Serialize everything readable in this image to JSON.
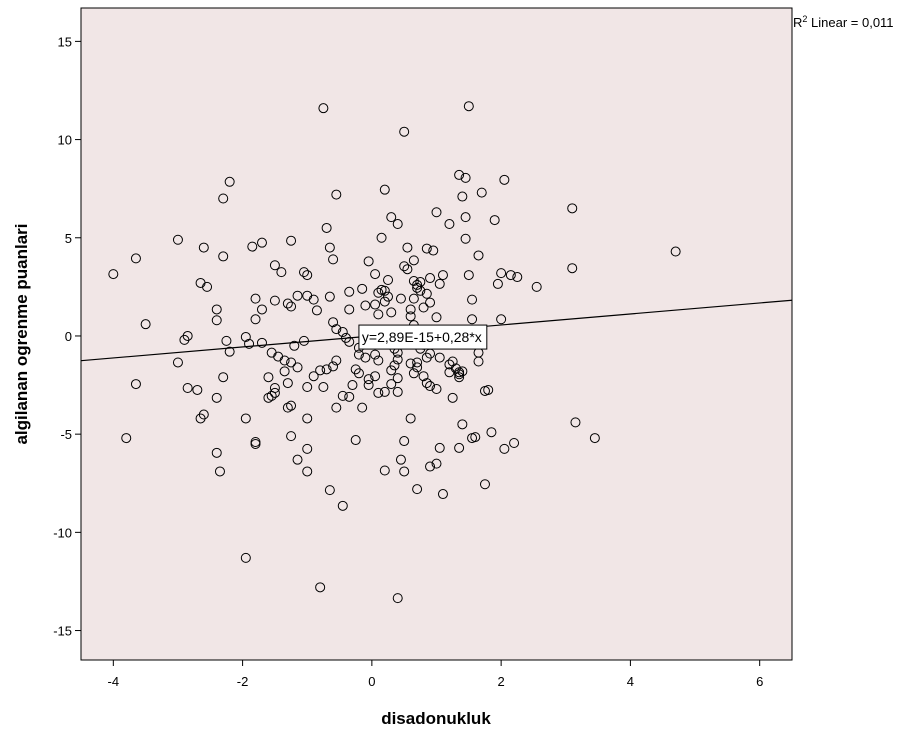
{
  "chart_data": {
    "type": "scatter",
    "xlabel": "disadonukluk",
    "ylabel": "algilanan ogrenme puanlari",
    "xlim": [
      -4.5,
      6.5
    ],
    "ylim": [
      -16.5,
      16.7
    ],
    "xticks": [
      -4,
      -2,
      0,
      2,
      4,
      6
    ],
    "xtick_labels": [
      "-4",
      "-2",
      "0",
      "2",
      "4",
      "6"
    ],
    "yticks": [
      15,
      10,
      5,
      0,
      -5,
      -10,
      -15
    ],
    "ytick_labels": [
      "15",
      "10",
      "5",
      "0",
      "-5",
      "-10",
      "-15"
    ],
    "grid": false,
    "plot_background": "#f1e6e6",
    "marker_color": "#000000",
    "line_color": "#000000",
    "fit_line": {
      "intercept": 0.0,
      "slope": 0.28,
      "label": "y=2,89E-15+0,28*x",
      "label_x": -0.2
    },
    "r2": {
      "superscript": "2",
      "prefix": "R",
      "text": " Linear = 0,011"
    },
    "points": [
      {
        "x": -0.75,
        "y": 11.6
      },
      {
        "x": 1.5,
        "y": 11.7
      },
      {
        "x": 0.5,
        "y": 10.4
      },
      {
        "x": 1.35,
        "y": 8.2
      },
      {
        "x": 1.45,
        "y": 8.05
      },
      {
        "x": 2.05,
        "y": 7.95
      },
      {
        "x": -2.2,
        "y": 7.85
      },
      {
        "x": 0.2,
        "y": 7.45
      },
      {
        "x": -0.55,
        "y": 7.2
      },
      {
        "x": 1.7,
        "y": 7.3
      },
      {
        "x": 1.4,
        "y": 7.1
      },
      {
        "x": -2.3,
        "y": 7.0
      },
      {
        "x": 3.1,
        "y": 6.5
      },
      {
        "x": 1.0,
        "y": 6.3
      },
      {
        "x": 0.3,
        "y": 6.05
      },
      {
        "x": 1.45,
        "y": 6.05
      },
      {
        "x": 1.9,
        "y": 5.9
      },
      {
        "x": 0.4,
        "y": 5.7
      },
      {
        "x": 1.2,
        "y": 5.7
      },
      {
        "x": -0.7,
        "y": 5.5
      },
      {
        "x": 0.15,
        "y": 5.0
      },
      {
        "x": 1.45,
        "y": 4.95
      },
      {
        "x": -3.0,
        "y": 4.9
      },
      {
        "x": -1.25,
        "y": 4.85
      },
      {
        "x": -1.7,
        "y": 4.75
      },
      {
        "x": -1.85,
        "y": 4.55
      },
      {
        "x": -2.6,
        "y": 4.5
      },
      {
        "x": 0.55,
        "y": 4.5
      },
      {
        "x": -0.65,
        "y": 4.5
      },
      {
        "x": 0.85,
        "y": 4.45
      },
      {
        "x": 0.95,
        "y": 4.35
      },
      {
        "x": 4.7,
        "y": 4.3
      },
      {
        "x": 1.65,
        "y": 4.1
      },
      {
        "x": -2.3,
        "y": 4.05
      },
      {
        "x": -3.65,
        "y": 3.95
      },
      {
        "x": -0.6,
        "y": 3.9
      },
      {
        "x": 0.65,
        "y": 3.85
      },
      {
        "x": -0.05,
        "y": 3.8
      },
      {
        "x": -1.5,
        "y": 3.6
      },
      {
        "x": 0.5,
        "y": 3.55
      },
      {
        "x": 3.1,
        "y": 3.45
      },
      {
        "x": 0.55,
        "y": 3.4
      },
      {
        "x": -1.05,
        "y": 3.25
      },
      {
        "x": -1.4,
        "y": 3.25
      },
      {
        "x": 2.0,
        "y": 3.2
      },
      {
        "x": -4.0,
        "y": 3.15
      },
      {
        "x": 0.05,
        "y": 3.15
      },
      {
        "x": 1.5,
        "y": 3.1
      },
      {
        "x": -1.0,
        "y": 3.1
      },
      {
        "x": 2.15,
        "y": 3.1
      },
      {
        "x": 1.1,
        "y": 3.1
      },
      {
        "x": 2.25,
        "y": 3.0
      },
      {
        "x": 0.9,
        "y": 2.95
      },
      {
        "x": 0.25,
        "y": 2.85
      },
      {
        "x": 0.65,
        "y": 2.8
      },
      {
        "x": 0.75,
        "y": 2.75
      },
      {
        "x": -2.65,
        "y": 2.7
      },
      {
        "x": 1.95,
        "y": 2.65
      },
      {
        "x": 1.05,
        "y": 2.65
      },
      {
        "x": 0.7,
        "y": 2.6
      },
      {
        "x": -2.55,
        "y": 2.5
      },
      {
        "x": 2.55,
        "y": 2.5
      },
      {
        "x": 0.7,
        "y": 2.45
      },
      {
        "x": -0.15,
        "y": 2.4
      },
      {
        "x": 0.15,
        "y": 2.35
      },
      {
        "x": 0.75,
        "y": 2.3
      },
      {
        "x": 0.2,
        "y": 2.3
      },
      {
        "x": -0.35,
        "y": 2.25
      },
      {
        "x": 0.1,
        "y": 2.2
      },
      {
        "x": 0.85,
        "y": 2.15
      },
      {
        "x": -1.15,
        "y": 2.05
      },
      {
        "x": -1.0,
        "y": 2.05
      },
      {
        "x": -0.65,
        "y": 2.0
      },
      {
        "x": 0.25,
        "y": 2.0
      },
      {
        "x": 0.65,
        "y": 1.9
      },
      {
        "x": -1.8,
        "y": 1.9
      },
      {
        "x": 0.45,
        "y": 1.9
      },
      {
        "x": -0.9,
        "y": 1.85
      },
      {
        "x": 1.55,
        "y": 1.85
      },
      {
        "x": -1.5,
        "y": 1.8
      },
      {
        "x": 0.2,
        "y": 1.75
      },
      {
        "x": 0.9,
        "y": 1.7
      },
      {
        "x": -1.3,
        "y": 1.65
      },
      {
        "x": 0.05,
        "y": 1.6
      },
      {
        "x": -0.1,
        "y": 1.55
      },
      {
        "x": -1.25,
        "y": 1.5
      },
      {
        "x": 0.8,
        "y": 1.45
      },
      {
        "x": -1.7,
        "y": 1.35
      },
      {
        "x": -0.35,
        "y": 1.35
      },
      {
        "x": -2.4,
        "y": 1.35
      },
      {
        "x": 0.6,
        "y": 1.35
      },
      {
        "x": -0.85,
        "y": 1.3
      },
      {
        "x": 0.3,
        "y": 1.2
      },
      {
        "x": 0.1,
        "y": 1.1
      },
      {
        "x": 0.6,
        "y": 1.0
      },
      {
        "x": 1.0,
        "y": 0.95
      },
      {
        "x": 1.55,
        "y": 0.85
      },
      {
        "x": 2.0,
        "y": 0.85
      },
      {
        "x": -1.8,
        "y": 0.85
      },
      {
        "x": -2.4,
        "y": 0.8
      },
      {
        "x": -0.6,
        "y": 0.7
      },
      {
        "x": 0.65,
        "y": 0.55
      },
      {
        "x": -3.5,
        "y": 0.6
      },
      {
        "x": -0.55,
        "y": 0.35
      },
      {
        "x": -0.45,
        "y": 0.2
      },
      {
        "x": 0.65,
        "y": 0.1
      },
      {
        "x": -2.85,
        "y": 0.0
      },
      {
        "x": -1.95,
        "y": -0.05
      },
      {
        "x": -0.4,
        "y": -0.1
      },
      {
        "x": -2.9,
        "y": -0.2
      },
      {
        "x": -1.05,
        "y": -0.25
      },
      {
        "x": -2.25,
        "y": -0.25
      },
      {
        "x": -0.35,
        "y": -0.3
      },
      {
        "x": -1.7,
        "y": -0.35
      },
      {
        "x": -1.9,
        "y": -0.4
      },
      {
        "x": 0.15,
        "y": -0.4
      },
      {
        "x": 0.8,
        "y": -0.45
      },
      {
        "x": -1.2,
        "y": -0.5
      },
      {
        "x": -0.2,
        "y": -0.6
      },
      {
        "x": 0.75,
        "y": -0.65
      },
      {
        "x": -2.2,
        "y": -0.8
      },
      {
        "x": 0.35,
        "y": -0.65
      },
      {
        "x": -1.55,
        "y": -0.85
      },
      {
        "x": 0.4,
        "y": -0.85
      },
      {
        "x": 1.65,
        "y": -0.85
      },
      {
        "x": 0.9,
        "y": -0.9
      },
      {
        "x": -0.2,
        "y": -0.95
      },
      {
        "x": 0.05,
        "y": -0.95
      },
      {
        "x": -1.45,
        "y": -1.05
      },
      {
        "x": -0.1,
        "y": -1.1
      },
      {
        "x": 1.05,
        "y": -1.1
      },
      {
        "x": 0.85,
        "y": -1.1
      },
      {
        "x": 0.4,
        "y": -1.2
      },
      {
        "x": -0.55,
        "y": -1.25
      },
      {
        "x": -1.35,
        "y": -1.25
      },
      {
        "x": 0.1,
        "y": -1.25
      },
      {
        "x": 1.25,
        "y": -1.3
      },
      {
        "x": 1.65,
        "y": -1.3
      },
      {
        "x": -1.25,
        "y": -1.35
      },
      {
        "x": 0.7,
        "y": -1.35
      },
      {
        "x": -3.0,
        "y": -1.35
      },
      {
        "x": 0.6,
        "y": -1.4
      },
      {
        "x": 1.2,
        "y": -1.45
      },
      {
        "x": 0.35,
        "y": -1.5
      },
      {
        "x": -0.6,
        "y": -1.55
      },
      {
        "x": -1.15,
        "y": -1.6
      },
      {
        "x": 0.7,
        "y": -1.6
      },
      {
        "x": 1.3,
        "y": -1.65
      },
      {
        "x": -0.7,
        "y": -1.7
      },
      {
        "x": -0.25,
        "y": -1.7
      },
      {
        "x": -0.8,
        "y": -1.75
      },
      {
        "x": 0.3,
        "y": -1.75
      },
      {
        "x": -1.35,
        "y": -1.8
      },
      {
        "x": 1.4,
        "y": -1.8
      },
      {
        "x": 1.35,
        "y": -1.85
      },
      {
        "x": 1.2,
        "y": -1.85
      },
      {
        "x": -0.2,
        "y": -1.9
      },
      {
        "x": 0.65,
        "y": -1.9
      },
      {
        "x": 1.35,
        "y": -1.95
      },
      {
        "x": -0.9,
        "y": -2.05
      },
      {
        "x": 0.8,
        "y": -2.05
      },
      {
        "x": 0.05,
        "y": -2.05
      },
      {
        "x": -1.6,
        "y": -2.1
      },
      {
        "x": 1.35,
        "y": -2.1
      },
      {
        "x": 0.4,
        "y": -2.15
      },
      {
        "x": -2.3,
        "y": -2.1
      },
      {
        "x": -0.05,
        "y": -2.2
      },
      {
        "x": -1.3,
        "y": -2.4
      },
      {
        "x": 0.85,
        "y": -2.4
      },
      {
        "x": 0.3,
        "y": -2.45
      },
      {
        "x": -0.3,
        "y": -2.5
      },
      {
        "x": -0.05,
        "y": -2.5
      },
      {
        "x": -3.65,
        "y": -2.45
      },
      {
        "x": 0.9,
        "y": -2.55
      },
      {
        "x": -1.0,
        "y": -2.6
      },
      {
        "x": -0.75,
        "y": -2.6
      },
      {
        "x": -1.5,
        "y": -2.65
      },
      {
        "x": -2.85,
        "y": -2.65
      },
      {
        "x": 1.0,
        "y": -2.7
      },
      {
        "x": 1.8,
        "y": -2.75
      },
      {
        "x": -2.7,
        "y": -2.75
      },
      {
        "x": 1.75,
        "y": -2.8
      },
      {
        "x": 0.2,
        "y": -2.85
      },
      {
        "x": 0.4,
        "y": -2.85
      },
      {
        "x": -1.5,
        "y": -2.9
      },
      {
        "x": 0.1,
        "y": -2.9
      },
      {
        "x": -1.55,
        "y": -3.05
      },
      {
        "x": -0.45,
        "y": -3.05
      },
      {
        "x": -2.4,
        "y": -3.15
      },
      {
        "x": -0.35,
        "y": -3.1
      },
      {
        "x": -1.6,
        "y": -3.15
      },
      {
        "x": 1.25,
        "y": -3.15
      },
      {
        "x": -0.15,
        "y": -3.65
      },
      {
        "x": -1.3,
        "y": -3.65
      },
      {
        "x": -1.25,
        "y": -3.55
      },
      {
        "x": -0.55,
        "y": -3.65
      },
      {
        "x": -2.6,
        "y": -4.0
      },
      {
        "x": -2.65,
        "y": -4.2
      },
      {
        "x": -1.95,
        "y": -4.2
      },
      {
        "x": -1.0,
        "y": -4.2
      },
      {
        "x": 0.6,
        "y": -4.2
      },
      {
        "x": 3.15,
        "y": -4.4
      },
      {
        "x": 1.4,
        "y": -4.5
      },
      {
        "x": 1.85,
        "y": -4.9
      },
      {
        "x": -1.25,
        "y": -5.1
      },
      {
        "x": 1.6,
        "y": -5.15
      },
      {
        "x": -3.8,
        "y": -5.2
      },
      {
        "x": 1.55,
        "y": -5.2
      },
      {
        "x": 3.45,
        "y": -5.2
      },
      {
        "x": -0.25,
        "y": -5.3
      },
      {
        "x": 0.5,
        "y": -5.35
      },
      {
        "x": -1.8,
        "y": -5.4
      },
      {
        "x": -1.8,
        "y": -5.5
      },
      {
        "x": 2.2,
        "y": -5.45
      },
      {
        "x": 1.05,
        "y": -5.7
      },
      {
        "x": 1.35,
        "y": -5.7
      },
      {
        "x": -1.0,
        "y": -5.75
      },
      {
        "x": 2.05,
        "y": -5.75
      },
      {
        "x": -2.4,
        "y": -5.95
      },
      {
        "x": -1.15,
        "y": -6.3
      },
      {
        "x": 0.45,
        "y": -6.3
      },
      {
        "x": 1.0,
        "y": -6.5
      },
      {
        "x": -2.35,
        "y": -6.9
      },
      {
        "x": 0.9,
        "y": -6.65
      },
      {
        "x": 0.2,
        "y": -6.85
      },
      {
        "x": -1.0,
        "y": -6.9
      },
      {
        "x": 0.5,
        "y": -6.9
      },
      {
        "x": 1.75,
        "y": -7.55
      },
      {
        "x": -0.65,
        "y": -7.85
      },
      {
        "x": 0.7,
        "y": -7.8
      },
      {
        "x": 1.1,
        "y": -8.05
      },
      {
        "x": -0.45,
        "y": -8.65
      },
      {
        "x": -1.95,
        "y": -11.3
      },
      {
        "x": -0.8,
        "y": -12.8
      },
      {
        "x": 0.4,
        "y": -13.35
      }
    ]
  }
}
